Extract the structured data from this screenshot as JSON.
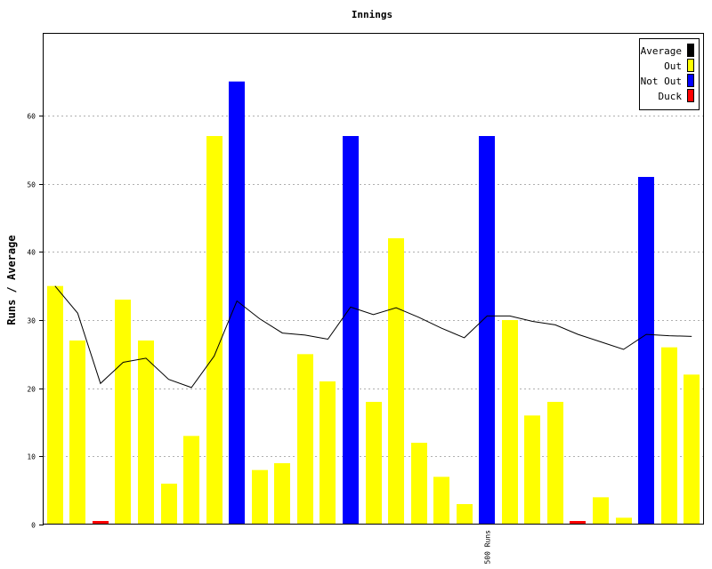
{
  "chart_data": {
    "type": "bar",
    "title": "Innings",
    "xlabel": "",
    "ylabel": "Runs / Average",
    "ylim": [
      0,
      72
    ],
    "yticks": [
      0,
      10,
      20,
      30,
      40,
      50,
      60
    ],
    "grid": true,
    "legend_position": "top-right",
    "legend": [
      {
        "label": "Average",
        "color": "#000000"
      },
      {
        "label": "Out",
        "color": "#ffff00"
      },
      {
        "label": "Not Out",
        "color": "#0000ff"
      },
      {
        "label": "Duck",
        "color": "#ff0000"
      }
    ],
    "innings": [
      {
        "runs": 35,
        "status": "Out"
      },
      {
        "runs": 27,
        "status": "Out"
      },
      {
        "runs": 0,
        "status": "Duck"
      },
      {
        "runs": 33,
        "status": "Out"
      },
      {
        "runs": 27,
        "status": "Out"
      },
      {
        "runs": 6,
        "status": "Out"
      },
      {
        "runs": 13,
        "status": "Out"
      },
      {
        "runs": 57,
        "status": "Out"
      },
      {
        "runs": 65,
        "status": "Not Out"
      },
      {
        "runs": 8,
        "status": "Out"
      },
      {
        "runs": 9,
        "status": "Out"
      },
      {
        "runs": 25,
        "status": "Out"
      },
      {
        "runs": 21,
        "status": "Out"
      },
      {
        "runs": 57,
        "status": "Not Out"
      },
      {
        "runs": 18,
        "status": "Out"
      },
      {
        "runs": 42,
        "status": "Out"
      },
      {
        "runs": 12,
        "status": "Out"
      },
      {
        "runs": 7,
        "status": "Out"
      },
      {
        "runs": 3,
        "status": "Out"
      },
      {
        "runs": 57,
        "status": "Not Out"
      },
      {
        "runs": 30,
        "status": "Out"
      },
      {
        "runs": 16,
        "status": "Out"
      },
      {
        "runs": 18,
        "status": "Out"
      },
      {
        "runs": 0,
        "status": "Duck"
      },
      {
        "runs": 4,
        "status": "Out"
      },
      {
        "runs": 1,
        "status": "Out"
      },
      {
        "runs": 51,
        "status": "Not Out"
      },
      {
        "runs": 26,
        "status": "Out"
      },
      {
        "runs": 22,
        "status": "Out"
      }
    ],
    "average": [
      35,
      31,
      20.7,
      23.8,
      24.4,
      21.3,
      20.1,
      24.7,
      32.8,
      30.2,
      28.1,
      27.8,
      27.2,
      31.9,
      30.8,
      31.8,
      30.4,
      28.8,
      27.4,
      30.6,
      30.6,
      29.8,
      29.3,
      27.9,
      26.8,
      25.7,
      27.9,
      27.7,
      27.6
    ],
    "annotations": [
      {
        "label": "500 Runs",
        "inning_index": 19
      }
    ]
  }
}
